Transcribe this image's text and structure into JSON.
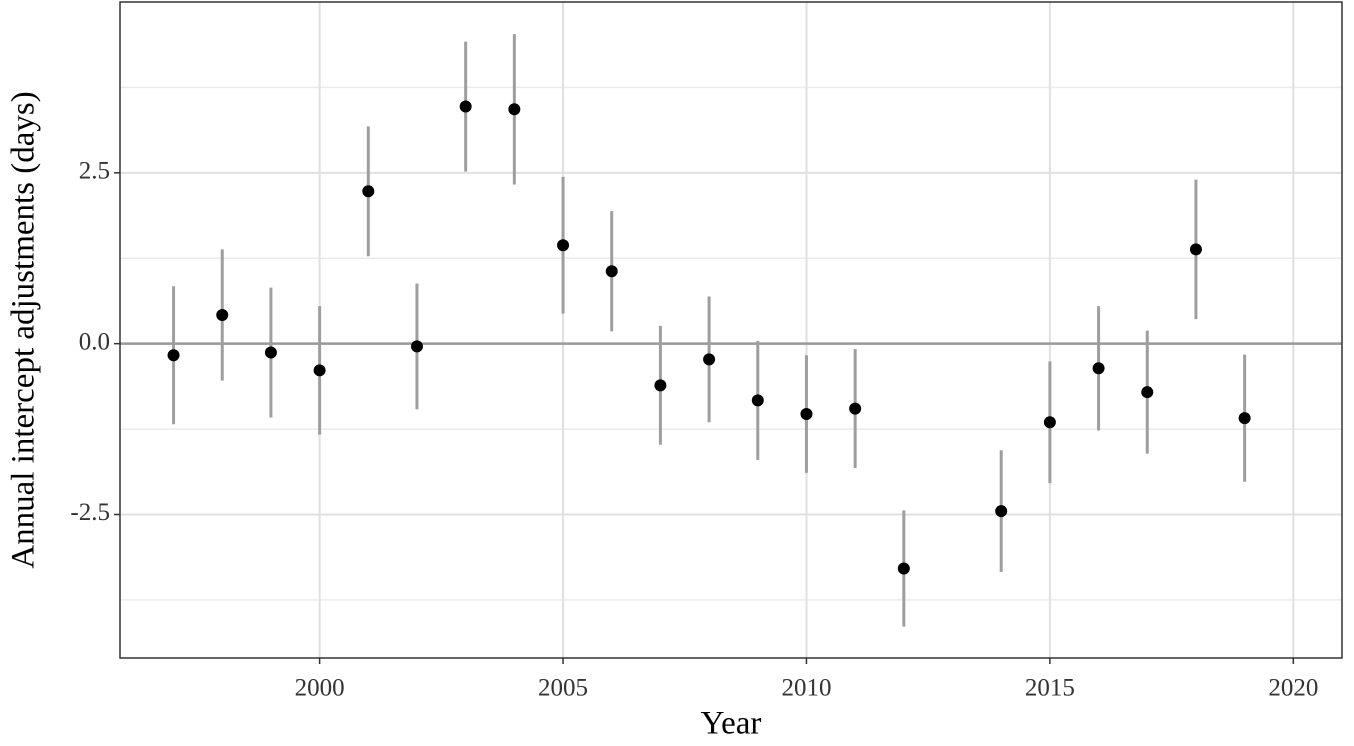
{
  "chart_data": {
    "type": "scatter",
    "x_label": "Year",
    "y_label": "Annual intercept adjustments (days)",
    "x": [
      1997,
      1998,
      1999,
      2000,
      2001,
      2002,
      2003,
      2004,
      2005,
      2006,
      2007,
      2008,
      2009,
      2010,
      2011,
      2012,
      2014,
      2015,
      2016,
      2017,
      2018,
      2019
    ],
    "values": [
      -0.17,
      0.42,
      -0.13,
      -0.39,
      2.23,
      -0.04,
      3.47,
      3.43,
      1.44,
      1.06,
      -0.61,
      -0.23,
      -0.83,
      -1.03,
      -0.95,
      -3.29,
      -2.45,
      -1.15,
      -0.36,
      -0.71,
      1.38,
      -1.09
    ],
    "errors": [
      1.01,
      0.96,
      0.95,
      0.94,
      0.95,
      0.92,
      0.95,
      1.1,
      1.0,
      0.88,
      0.87,
      0.92,
      0.87,
      0.86,
      0.87,
      0.85,
      0.89,
      0.89,
      0.91,
      0.9,
      1.02,
      0.93
    ],
    "color": "#000000",
    "error_color": "#9e9e9e",
    "xlim": [
      1995.9,
      2021.0
    ],
    "xticks": [
      2000,
      2005,
      2010,
      2015,
      2020
    ],
    "ylim": [
      -4.6,
      5.0
    ],
    "yticks": [
      {
        "value": -2.5,
        "label": "-2.5"
      },
      {
        "value": 0,
        "label": "0.0"
      },
      {
        "value": 2.5,
        "label": "2.5"
      }
    ],
    "y_minor_ticks": [
      -3.75,
      -1.25,
      1.25,
      3.75
    ],
    "hline": 0,
    "grid": true
  }
}
